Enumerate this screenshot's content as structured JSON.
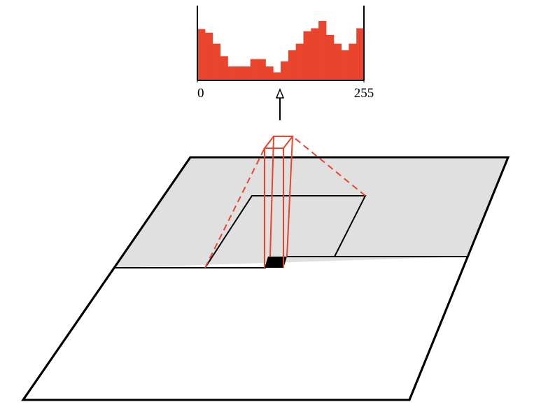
{
  "histogram": {
    "type": "histogram",
    "color": "#e8452c",
    "bins": [
      0,
      11.6,
      23.2,
      34.8,
      46.4,
      58,
      69.5,
      81.1,
      92.7,
      104.3,
      115.9,
      127.5,
      139.1,
      150.7,
      162.3,
      173.9,
      185.5,
      197,
      208.6,
      220.2,
      231.8,
      243.4,
      255
    ],
    "counts": [
      70,
      65,
      50,
      33,
      19,
      19,
      19,
      29,
      29,
      19,
      11,
      26,
      41,
      50,
      67,
      71,
      81,
      62,
      50,
      41,
      50,
      71
    ],
    "xlim": [
      0,
      255
    ],
    "xticks": [
      0,
      255
    ],
    "ylim": [
      0,
      100
    ]
  }
}
